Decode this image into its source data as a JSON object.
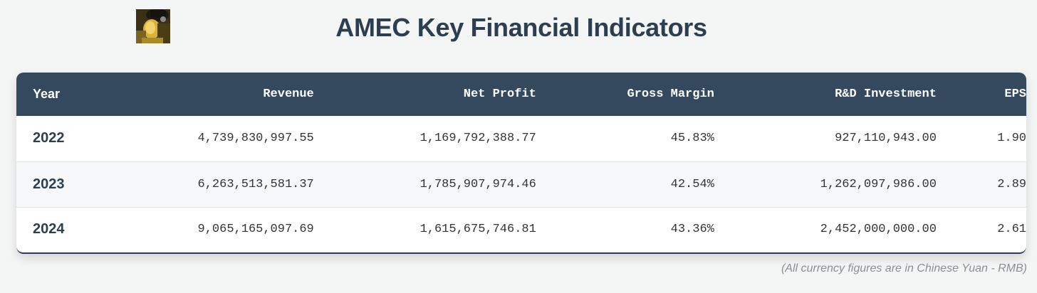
{
  "header": {
    "title": "AMEC Key Financial Indicators",
    "avatar_icon": "avatar-image"
  },
  "table": {
    "columns": [
      "Year",
      "Revenue",
      "Net Profit",
      "Gross Margin",
      "R&D Investment",
      "EPS"
    ],
    "rows": [
      [
        "2022",
        "4,739,830,997.55",
        "1,169,792,388.77",
        "45.83%",
        "927,110,943.00",
        "1.90"
      ],
      [
        "2023",
        "6,263,513,581.37",
        "1,785,907,974.46",
        "42.54%",
        "1,262,097,986.00",
        "2.89"
      ],
      [
        "2024",
        "9,065,165,097.69",
        "1,615,675,746.81",
        "43.36%",
        "2,452,000,000.00",
        "2.61"
      ]
    ]
  },
  "footnote": "(All currency figures are in Chinese Yuan - RMB)",
  "colors": {
    "header_bg": "#34495e",
    "title": "#2c3e50",
    "page_bg": "#f4f5f5"
  }
}
